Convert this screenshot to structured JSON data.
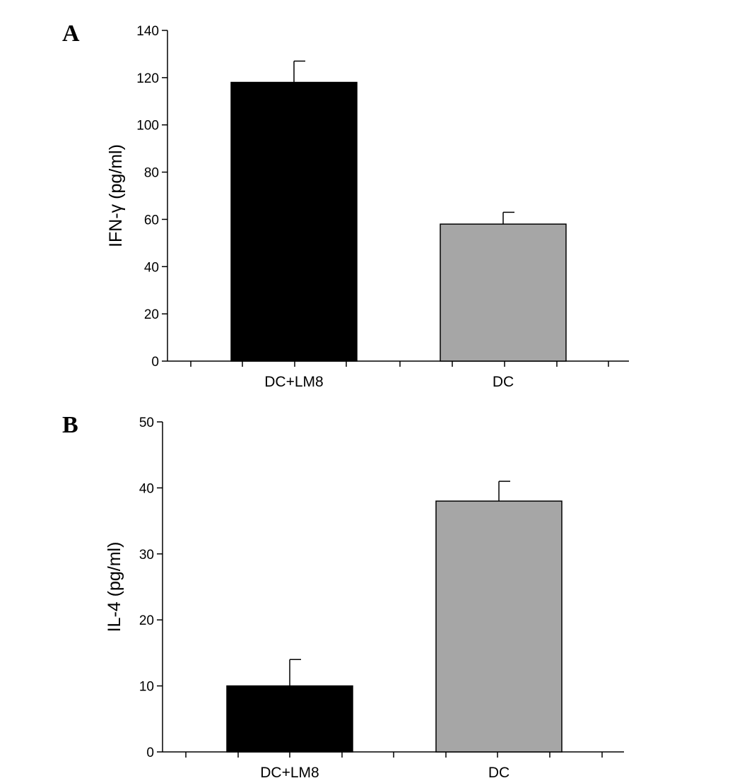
{
  "chart_data": [
    {
      "type": "bar",
      "panel": "A",
      "categories": [
        "DC+LM8",
        "DC"
      ],
      "values": [
        118,
        58
      ],
      "errors": [
        9,
        5
      ],
      "colors": [
        "#000000",
        "#a6a6a6"
      ],
      "ylabel": "IFN-γ (pg/ml)",
      "ylim": [
        0,
        140
      ],
      "yticks": [
        0,
        20,
        40,
        60,
        80,
        100,
        120,
        140
      ],
      "grid": false
    },
    {
      "type": "bar",
      "panel": "B",
      "categories": [
        "DC+LM8",
        "DC"
      ],
      "values": [
        10,
        38
      ],
      "errors": [
        4,
        3
      ],
      "colors": [
        "#000000",
        "#a6a6a6"
      ],
      "ylabel": "IL-4 (pg/ml)",
      "ylim": [
        0,
        50
      ],
      "yticks": [
        0,
        10,
        20,
        30,
        40,
        50
      ],
      "grid": false
    }
  ]
}
